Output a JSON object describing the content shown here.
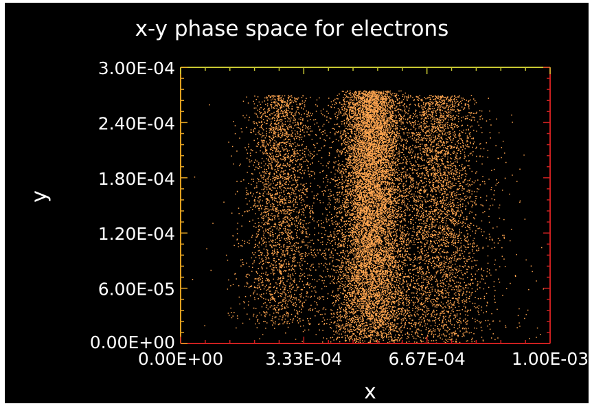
{
  "chart_data": {
    "type": "scatter",
    "title": "x-y phase space for electrons",
    "xlabel": "x",
    "ylabel": "y",
    "xlim": [
      0,
      0.001
    ],
    "ylim": [
      0,
      0.0003
    ],
    "x_ticks": [
      "0.00E+00",
      "3.33E-04",
      "6.67E-04",
      "1.00E-03"
    ],
    "y_ticks": [
      "0.00E+00",
      "6.00E-05",
      "1.20E-04",
      "1.80E-04",
      "2.40E-04",
      "3.00E-04"
    ],
    "grid": false,
    "colors": {
      "background": "#000000",
      "points": "#ffa54f",
      "axis_top": "#c8c832",
      "axis_left": "#e0a020",
      "axis_right": "#cc2020",
      "axis_bottom": "#cc2020",
      "text": "#ffffff"
    },
    "series": [
      {
        "clusters": [
          {
            "x_center": 0.000515,
            "x_spread": 5.5e-05,
            "y_min": 0.0,
            "y_max": 0.000275,
            "count": 9000
          },
          {
            "x_center": 0.00027,
            "x_spread": 6e-05,
            "y_min": 2e-05,
            "y_max": 0.00027,
            "count": 2600
          },
          {
            "x_center": 0.0007,
            "x_spread": 7e-05,
            "y_min": 0.0,
            "y_max": 0.00027,
            "count": 3200
          },
          {
            "x_center": 0.00056,
            "x_spread": 0.0002,
            "y_min": 0.0,
            "y_max": 0.00027,
            "count": 2000
          }
        ]
      }
    ]
  }
}
